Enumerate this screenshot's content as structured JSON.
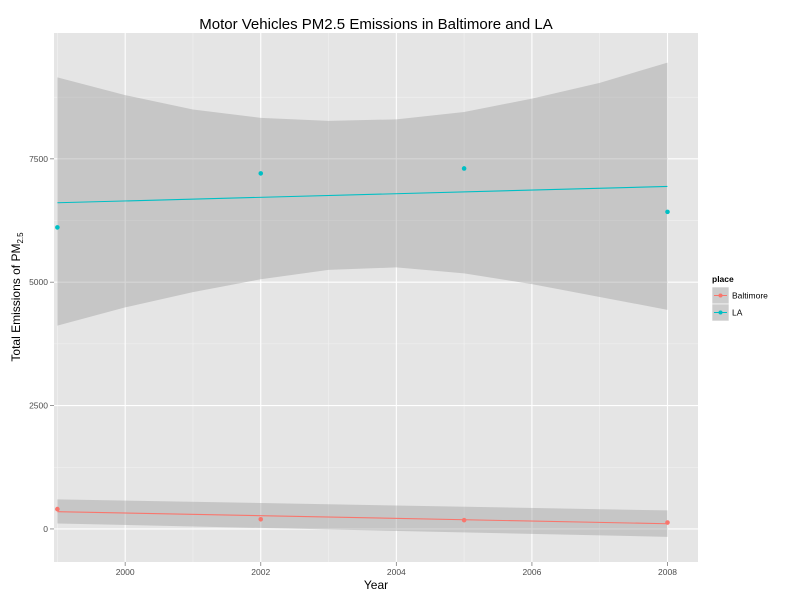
{
  "chart_data": {
    "type": "scatter",
    "title": "Motor Vehicles PM2.5 Emissions in Baltimore and LA",
    "xlabel": "Year",
    "ylabel_main": "Total Emissions of PM",
    "ylabel_sub": "2.5",
    "xlim": [
      1998.95,
      2008.45
    ],
    "ylim": [
      -670,
      10050
    ],
    "x_ticks": [
      2000,
      2002,
      2004,
      2006,
      2008
    ],
    "y_ticks": [
      0,
      2500,
      5000,
      7500
    ],
    "y_tick_labels": [
      "0",
      "2500",
      "5000",
      "7500"
    ],
    "grid": true,
    "legend": {
      "title": "place",
      "position": "right"
    },
    "series": [
      {
        "name": "Baltimore",
        "color": "#F8766D",
        "x": [
          1999,
          2002,
          2005,
          2008
        ],
        "y": [
          402,
          196,
          178,
          130
        ],
        "fit": {
          "x0": 1999,
          "y0": 350,
          "x1": 2008,
          "y1": 105
        },
        "ribbon": {
          "lower": [
            110,
            -160
          ],
          "upper": [
            600,
            375
          ]
        }
      },
      {
        "name": "LA",
        "color": "#00BFC4",
        "x": [
          1999,
          2002,
          2005,
          2008
        ],
        "y": [
          6110,
          7205,
          7305,
          6425
        ],
        "fit": {
          "x0": 1999,
          "y0": 6610,
          "x1": 2008,
          "y1": 6940
        },
        "ribbon": {
          "x": [
            1999,
            2000,
            2001,
            2002,
            2003,
            2004,
            2005,
            2006,
            2007,
            2008
          ],
          "lower": [
            4120,
            4490,
            4800,
            5060,
            5250,
            5300,
            5180,
            4960,
            4700,
            4440
          ],
          "upper": [
            9150,
            8790,
            8500,
            8330,
            8270,
            8300,
            8450,
            8720,
            9040,
            9450
          ]
        }
      }
    ]
  }
}
